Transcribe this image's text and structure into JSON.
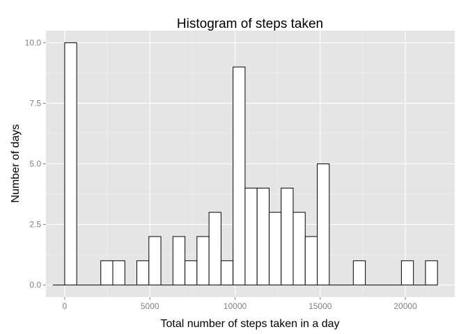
{
  "chart_data": {
    "type": "bar",
    "title": "Histogram of steps taken",
    "xlabel": "Total number of steps taken in a day",
    "ylabel": "Number of days",
    "xlim": [
      -1100,
      22900
    ],
    "ylim": [
      -0.5,
      10.5
    ],
    "x_ticks": [
      0,
      5000,
      10000,
      15000,
      20000
    ],
    "x_tick_labels": [
      "0",
      "5000",
      "10000",
      "15000",
      "20000"
    ],
    "y_ticks": [
      0,
      2.5,
      5,
      7.5,
      10
    ],
    "y_tick_labels": [
      "0.0",
      "2.5",
      "5.0",
      "7.5",
      "10.0"
    ],
    "grid": true,
    "bin_width": 706,
    "bins": [
      {
        "start": -706,
        "end": 0,
        "count": 0
      },
      {
        "start": 0,
        "end": 706,
        "count": 10
      },
      {
        "start": 706,
        "end": 1412,
        "count": 0
      },
      {
        "start": 1412,
        "end": 2118,
        "count": 0
      },
      {
        "start": 2118,
        "end": 2824,
        "count": 1
      },
      {
        "start": 2824,
        "end": 3530,
        "count": 1
      },
      {
        "start": 3530,
        "end": 4236,
        "count": 0
      },
      {
        "start": 4236,
        "end": 4942,
        "count": 1
      },
      {
        "start": 4942,
        "end": 5648,
        "count": 2
      },
      {
        "start": 5648,
        "end": 6354,
        "count": 0
      },
      {
        "start": 6354,
        "end": 7060,
        "count": 2
      },
      {
        "start": 7060,
        "end": 7766,
        "count": 1
      },
      {
        "start": 7766,
        "end": 8472,
        "count": 2
      },
      {
        "start": 8472,
        "end": 9178,
        "count": 3
      },
      {
        "start": 9178,
        "end": 9884,
        "count": 1
      },
      {
        "start": 9884,
        "end": 10590,
        "count": 9
      },
      {
        "start": 10590,
        "end": 11296,
        "count": 4
      },
      {
        "start": 11296,
        "end": 12002,
        "count": 4
      },
      {
        "start": 12002,
        "end": 12708,
        "count": 3
      },
      {
        "start": 12708,
        "end": 13414,
        "count": 4
      },
      {
        "start": 13414,
        "end": 14120,
        "count": 3
      },
      {
        "start": 14120,
        "end": 14826,
        "count": 2
      },
      {
        "start": 14826,
        "end": 15532,
        "count": 5
      },
      {
        "start": 15532,
        "end": 16238,
        "count": 0
      },
      {
        "start": 16238,
        "end": 16944,
        "count": 0
      },
      {
        "start": 16944,
        "end": 17650,
        "count": 1
      },
      {
        "start": 17650,
        "end": 18356,
        "count": 0
      },
      {
        "start": 18356,
        "end": 19062,
        "count": 0
      },
      {
        "start": 19062,
        "end": 19768,
        "count": 0
      },
      {
        "start": 19768,
        "end": 20474,
        "count": 1
      },
      {
        "start": 20474,
        "end": 21180,
        "count": 0
      },
      {
        "start": 21180,
        "end": 21886,
        "count": 1
      }
    ],
    "colors": {
      "panel_background": "#e5e5e5",
      "grid_major": "#ffffff",
      "grid_minor": "#f2f2f2",
      "bar_fill": "#ffffff",
      "bar_outline": "#000000",
      "tick_label": "#7f7f7f",
      "tick_mark": "#7f7f7f",
      "text": "#000000"
    }
  }
}
